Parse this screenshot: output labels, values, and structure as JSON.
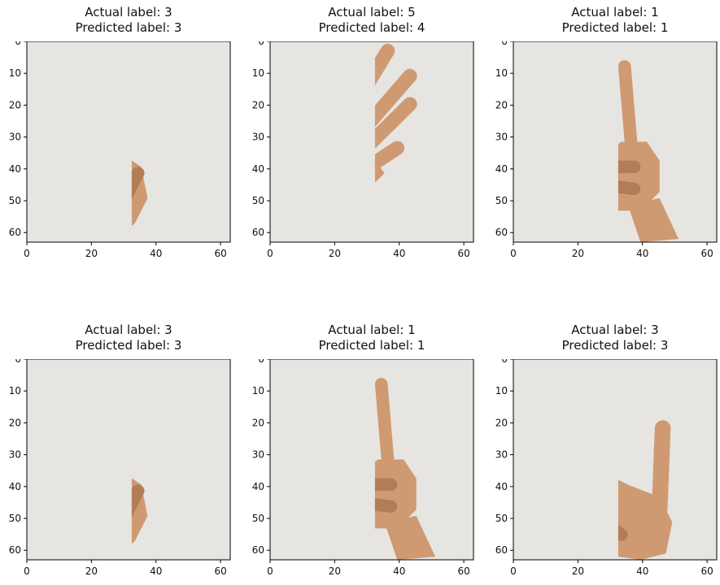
{
  "chart_data": [
    {
      "type": "image",
      "title_line1": "Actual label: 3",
      "title_line2": "Predicted label: 3",
      "actual": 3,
      "predicted": 3,
      "depicts": "hand-three-fingers",
      "xlim": [
        0,
        63
      ],
      "ylim": [
        63,
        0
      ],
      "xticks": [
        0,
        20,
        40,
        60
      ],
      "yticks": [
        0,
        10,
        20,
        30,
        40,
        50,
        60
      ]
    },
    {
      "type": "image",
      "title_line1": "Actual label: 5",
      "title_line2": "Predicted label: 4",
      "actual": 5,
      "predicted": 4,
      "depicts": "hand-open-five-fingers",
      "xlim": [
        0,
        63
      ],
      "ylim": [
        63,
        0
      ],
      "xticks": [
        0,
        20,
        40,
        60
      ],
      "yticks": [
        0,
        10,
        20,
        30,
        40,
        50,
        60
      ]
    },
    {
      "type": "image",
      "title_line1": "Actual label: 1",
      "title_line2": "Predicted label: 1",
      "actual": 1,
      "predicted": 1,
      "depicts": "hand-one-finger",
      "xlim": [
        0,
        63
      ],
      "ylim": [
        63,
        0
      ],
      "xticks": [
        0,
        20,
        40,
        60
      ],
      "yticks": [
        0,
        10,
        20,
        30,
        40,
        50,
        60
      ]
    },
    {
      "type": "image",
      "title_line1": "Actual label: 3",
      "title_line2": "Predicted label: 3",
      "actual": 3,
      "predicted": 3,
      "depicts": "hand-three-fingers",
      "xlim": [
        0,
        63
      ],
      "ylim": [
        63,
        0
      ],
      "xticks": [
        0,
        20,
        40,
        60
      ],
      "yticks": [
        0,
        10,
        20,
        30,
        40,
        50,
        60
      ]
    },
    {
      "type": "image",
      "title_line1": "Actual label: 1",
      "title_line2": "Predicted label: 1",
      "actual": 1,
      "predicted": 1,
      "depicts": "hand-one-finger",
      "xlim": [
        0,
        63
      ],
      "ylim": [
        63,
        0
      ],
      "xticks": [
        0,
        20,
        40,
        60
      ],
      "yticks": [
        0,
        10,
        20,
        30,
        40,
        50,
        60
      ]
    },
    {
      "type": "image",
      "title_line1": "Actual label: 3",
      "title_line2": "Predicted label: 3",
      "actual": 3,
      "predicted": 3,
      "depicts": "hand-three-fingers-tilted",
      "xlim": [
        0,
        63
      ],
      "ylim": [
        63,
        0
      ],
      "xticks": [
        0,
        20,
        40,
        60
      ],
      "yticks": [
        0,
        10,
        20,
        30,
        40,
        50,
        60
      ]
    }
  ],
  "colors": {
    "background": "#e6e5e1",
    "skin": "#cf9a72",
    "skin_shadow": "#b37c58",
    "axis": "#000000"
  }
}
